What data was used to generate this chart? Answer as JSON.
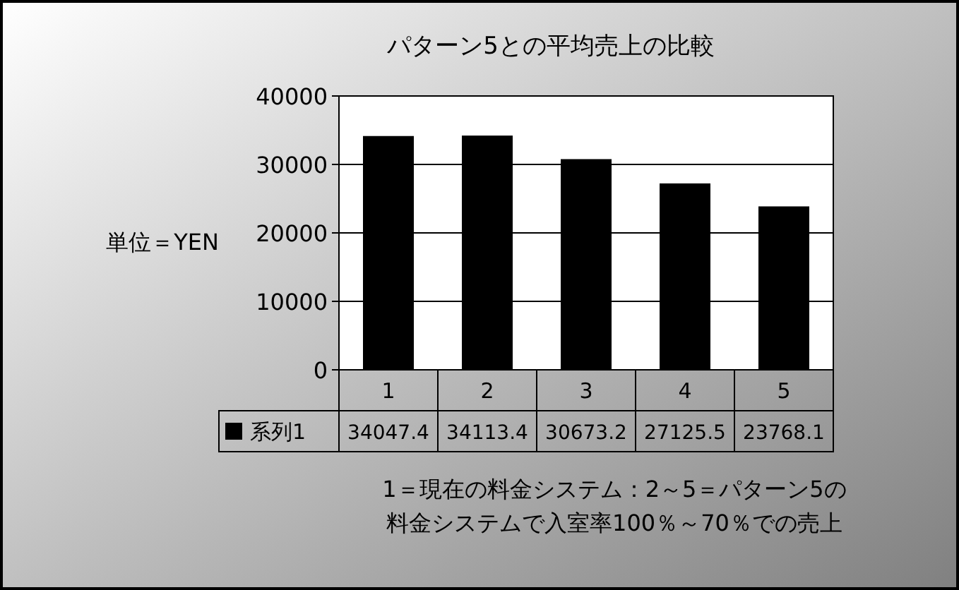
{
  "chart_data": {
    "type": "bar",
    "title": "パターン5との平均売上の比較",
    "ylabel": "単位＝YEN",
    "xlabel": "1＝現在の料金システム：2～5＝パターン5の料金システムで入室率100％～70％での売上",
    "categories": [
      "1",
      "2",
      "3",
      "4",
      "5"
    ],
    "series": [
      {
        "name": "系列1",
        "color": "#000000",
        "values": [
          34047.4,
          34113.4,
          30673.2,
          27125.5,
          23768.1
        ]
      }
    ],
    "ylim": [
      0,
      40000
    ],
    "yticks": [
      0,
      10000,
      20000,
      30000,
      40000
    ],
    "grid": "y",
    "legend": "bottom",
    "data_labels": true
  }
}
